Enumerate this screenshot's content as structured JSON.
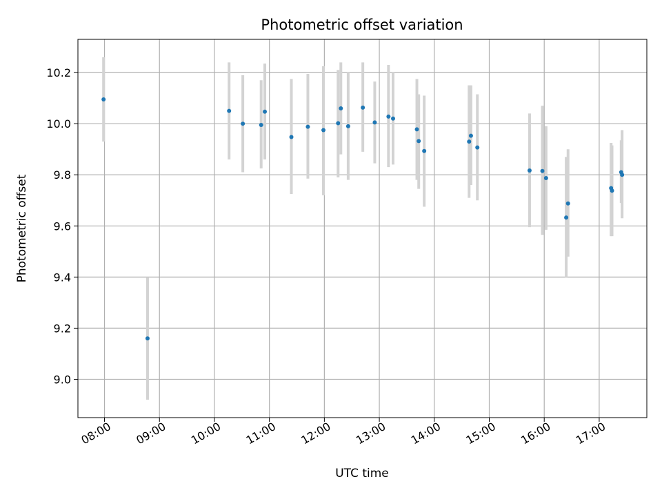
{
  "chart_data": {
    "type": "scatter",
    "title": "Photometric offset variation",
    "xlabel": "UTC time",
    "ylabel": "Photometric offset",
    "xlim": [
      "07:31",
      "17:52"
    ],
    "ylim": [
      8.85,
      10.33
    ],
    "grid": true,
    "x_ticks": [
      "08:00",
      "09:00",
      "10:00",
      "11:00",
      "12:00",
      "13:00",
      "14:00",
      "15:00",
      "16:00",
      "17:00"
    ],
    "y_ticks": [
      "9.0",
      "9.2",
      "9.4",
      "9.6",
      "9.8",
      "10.0",
      "10.2"
    ],
    "colors": {
      "marker": "#1f77b4",
      "errorbar": "#d3d3d3",
      "grid": "#b0b0b0"
    },
    "points": [
      {
        "t": "07:59",
        "y": 10.095,
        "lo": 9.93,
        "hi": 10.26
      },
      {
        "t": "08:47",
        "y": 9.16,
        "lo": 8.92,
        "hi": 9.4
      },
      {
        "t": "10:16",
        "y": 10.05,
        "lo": 9.86,
        "hi": 10.24
      },
      {
        "t": "10:31",
        "y": 10.0,
        "lo": 9.81,
        "hi": 10.19
      },
      {
        "t": "10:51",
        "y": 9.995,
        "lo": 9.825,
        "hi": 10.17
      },
      {
        "t": "10:55",
        "y": 10.047,
        "lo": 9.86,
        "hi": 10.235
      },
      {
        "t": "11:24",
        "y": 9.948,
        "lo": 9.725,
        "hi": 10.175
      },
      {
        "t": "11:42",
        "y": 9.988,
        "lo": 9.785,
        "hi": 10.195
      },
      {
        "t": "11:59",
        "y": 9.975,
        "lo": 9.72,
        "hi": 10.225
      },
      {
        "t": "12:15",
        "y": 10.002,
        "lo": 9.79,
        "hi": 10.21
      },
      {
        "t": "12:18",
        "y": 10.06,
        "lo": 9.88,
        "hi": 10.24
      },
      {
        "t": "12:26",
        "y": 9.99,
        "lo": 9.78,
        "hi": 10.2
      },
      {
        "t": "12:42",
        "y": 10.063,
        "lo": 9.89,
        "hi": 10.24
      },
      {
        "t": "12:55",
        "y": 10.005,
        "lo": 9.845,
        "hi": 10.165
      },
      {
        "t": "13:10",
        "y": 10.028,
        "lo": 9.83,
        "hi": 10.23
      },
      {
        "t": "13:15",
        "y": 10.02,
        "lo": 9.84,
        "hi": 10.2
      },
      {
        "t": "13:41",
        "y": 9.978,
        "lo": 9.78,
        "hi": 10.175
      },
      {
        "t": "13:43",
        "y": 9.932,
        "lo": 9.745,
        "hi": 10.115
      },
      {
        "t": "13:49",
        "y": 9.893,
        "lo": 9.675,
        "hi": 10.11
      },
      {
        "t": "14:38",
        "y": 9.93,
        "lo": 9.71,
        "hi": 10.15
      },
      {
        "t": "14:40",
        "y": 9.953,
        "lo": 9.76,
        "hi": 10.15
      },
      {
        "t": "14:47",
        "y": 9.907,
        "lo": 9.7,
        "hi": 10.115
      },
      {
        "t": "15:44",
        "y": 9.817,
        "lo": 9.595,
        "hi": 10.04
      },
      {
        "t": "15:58",
        "y": 9.815,
        "lo": 9.565,
        "hi": 10.07
      },
      {
        "t": "16:02",
        "y": 9.787,
        "lo": 9.585,
        "hi": 9.99
      },
      {
        "t": "16:24",
        "y": 9.633,
        "lo": 9.4,
        "hi": 9.87
      },
      {
        "t": "16:26",
        "y": 9.688,
        "lo": 9.48,
        "hi": 9.9
      },
      {
        "t": "17:13",
        "y": 9.748,
        "lo": 9.56,
        "hi": 9.925
      },
      {
        "t": "17:14",
        "y": 9.738,
        "lo": 9.56,
        "hi": 9.915
      },
      {
        "t": "17:24",
        "y": 9.81,
        "lo": 9.69,
        "hi": 9.935
      },
      {
        "t": "17:25",
        "y": 9.8,
        "lo": 9.63,
        "hi": 9.975
      }
    ]
  }
}
